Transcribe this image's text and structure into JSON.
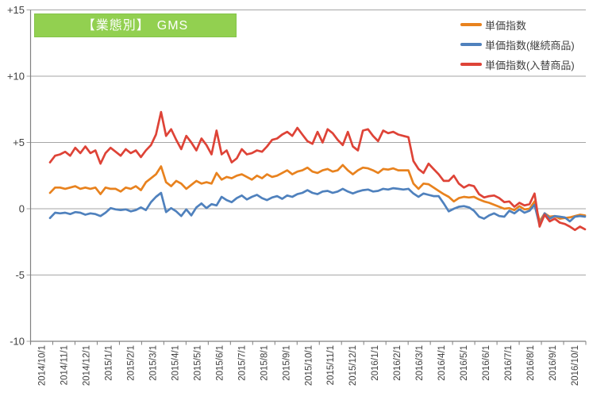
{
  "title": {
    "text": "【業態別】　GMS"
  },
  "legend": {
    "items": [
      {
        "label": "単価指数"
      },
      {
        "label": "単価指数(継続商品)"
      },
      {
        "label": "単価指数(入替商品)"
      }
    ]
  },
  "colors": {
    "title_bg": "#92D050",
    "title_text": "#FFFFFF",
    "grid": "#A6A6A6",
    "axis": "#808080",
    "tick_label": "#404040"
  },
  "chart_data": {
    "type": "line",
    "title": "【業態別】 GMS",
    "xlabel": "",
    "ylabel": "",
    "ylim": [
      -10,
      15
    ],
    "grid": true,
    "legend_position": "top-right",
    "x_frequency": "weekly",
    "y_ticks": [
      {
        "label": "+15",
        "value": 15
      },
      {
        "label": "+10",
        "value": 10
      },
      {
        "label": "+5",
        "value": 5
      },
      {
        "label": "0",
        "value": 0
      },
      {
        "label": "-5",
        "value": -5
      },
      {
        "label": "-10",
        "value": -10
      }
    ],
    "x_tick_labels": [
      "2014/10/1",
      "2014/11/1",
      "2014/12/1",
      "2015/1/1",
      "2015/2/1",
      "2015/3/1",
      "2015/4/1",
      "2015/5/1",
      "2015/6/1",
      "2015/7/1",
      "2015/8/1",
      "2015/9/1",
      "2015/10/1",
      "2015/11/1",
      "2015/12/1",
      "2016/1/1",
      "2016/2/1",
      "2016/3/1",
      "2016/4/1",
      "2016/5/1",
      "2016/6/1",
      "2016/7/1",
      "2016/8/1",
      "2016/9/1",
      "2016/10/1"
    ],
    "series": [
      {
        "name": "単価指数",
        "color": "#E8821E",
        "values": [
          1.2,
          1.6,
          1.6,
          1.5,
          1.6,
          1.7,
          1.5,
          1.6,
          1.5,
          1.6,
          1.1,
          1.6,
          1.5,
          1.5,
          1.3,
          1.6,
          1.5,
          1.7,
          1.4,
          2.0,
          2.3,
          2.6,
          3.2,
          2.0,
          1.7,
          2.1,
          1.9,
          1.5,
          1.8,
          2.1,
          1.9,
          2.0,
          1.9,
          2.7,
          2.2,
          2.4,
          2.3,
          2.5,
          2.6,
          2.4,
          2.2,
          2.5,
          2.3,
          2.6,
          2.4,
          2.5,
          2.7,
          2.9,
          2.6,
          2.8,
          2.9,
          3.1,
          2.8,
          2.7,
          2.9,
          3.0,
          2.8,
          2.9,
          3.3,
          2.9,
          2.6,
          2.9,
          3.1,
          3.05,
          2.9,
          2.7,
          3.0,
          2.95,
          3.05,
          2.9,
          2.9,
          2.9,
          1.9,
          1.5,
          1.9,
          1.85,
          1.6,
          1.35,
          1.1,
          0.9,
          0.55,
          0.8,
          0.9,
          0.85,
          0.9,
          0.7,
          0.55,
          0.45,
          0.3,
          0.15,
          0.0,
          0.05,
          -0.1,
          0.2,
          -0.05,
          0.0,
          0.55,
          -0.95,
          -0.35,
          -0.6,
          -0.55,
          -0.75,
          -0.7,
          -0.65,
          -0.55,
          -0.45,
          -0.5
        ]
      },
      {
        "name": "単価指数(継続商品)",
        "color": "#4F81BD",
        "values": [
          -0.7,
          -0.3,
          -0.35,
          -0.3,
          -0.4,
          -0.25,
          -0.3,
          -0.45,
          -0.35,
          -0.4,
          -0.55,
          -0.3,
          0.05,
          -0.05,
          -0.1,
          -0.05,
          -0.2,
          -0.1,
          0.1,
          -0.1,
          0.5,
          0.9,
          1.2,
          -0.25,
          0.05,
          -0.2,
          -0.55,
          -0.05,
          -0.5,
          0.1,
          0.4,
          0.05,
          0.35,
          0.25,
          0.9,
          0.65,
          0.5,
          0.8,
          1.0,
          0.7,
          0.9,
          1.05,
          0.8,
          0.65,
          0.85,
          0.95,
          0.75,
          1.0,
          0.9,
          1.1,
          1.2,
          1.4,
          1.2,
          1.1,
          1.3,
          1.35,
          1.2,
          1.3,
          1.5,
          1.3,
          1.15,
          1.3,
          1.4,
          1.45,
          1.3,
          1.35,
          1.5,
          1.45,
          1.55,
          1.5,
          1.45,
          1.5,
          1.15,
          0.9,
          1.15,
          1.05,
          0.95,
          0.95,
          0.4,
          -0.2,
          0.0,
          0.15,
          0.2,
          0.1,
          -0.15,
          -0.6,
          -0.75,
          -0.5,
          -0.35,
          -0.55,
          -0.6,
          -0.15,
          -0.35,
          -0.05,
          -0.3,
          -0.15,
          0.3,
          -1.25,
          -0.35,
          -0.75,
          -0.55,
          -0.6,
          -0.65,
          -0.95,
          -0.6,
          -0.55,
          -0.6
        ]
      },
      {
        "name": "単価指数(入替商品)",
        "color": "#DE4337",
        "values": [
          3.5,
          4.0,
          4.1,
          4.3,
          4.0,
          4.6,
          4.2,
          4.7,
          4.2,
          4.4,
          3.4,
          4.2,
          4.6,
          4.3,
          4.0,
          4.5,
          4.2,
          4.4,
          3.9,
          4.4,
          4.8,
          5.6,
          7.3,
          5.5,
          6.0,
          5.2,
          4.5,
          5.5,
          5.0,
          4.4,
          5.3,
          4.8,
          4.1,
          5.9,
          4.1,
          4.4,
          3.5,
          3.8,
          4.5,
          4.1,
          4.2,
          4.4,
          4.3,
          4.7,
          5.2,
          5.3,
          5.6,
          5.8,
          5.5,
          6.1,
          5.6,
          5.1,
          4.9,
          5.8,
          5.0,
          6.0,
          5.7,
          5.2,
          4.8,
          5.8,
          4.7,
          4.4,
          5.9,
          6.0,
          5.5,
          5.1,
          5.9,
          5.7,
          5.8,
          5.6,
          5.5,
          5.4,
          3.6,
          3.0,
          2.7,
          3.4,
          3.0,
          2.6,
          2.1,
          2.1,
          2.5,
          1.9,
          1.6,
          1.8,
          1.7,
          1.1,
          0.85,
          0.95,
          1.0,
          0.8,
          0.5,
          0.55,
          0.15,
          0.45,
          0.25,
          0.35,
          1.15,
          -1.35,
          -0.45,
          -0.95,
          -0.75,
          -1.05,
          -1.15,
          -1.35,
          -1.6,
          -1.35,
          -1.55
        ]
      }
    ]
  }
}
